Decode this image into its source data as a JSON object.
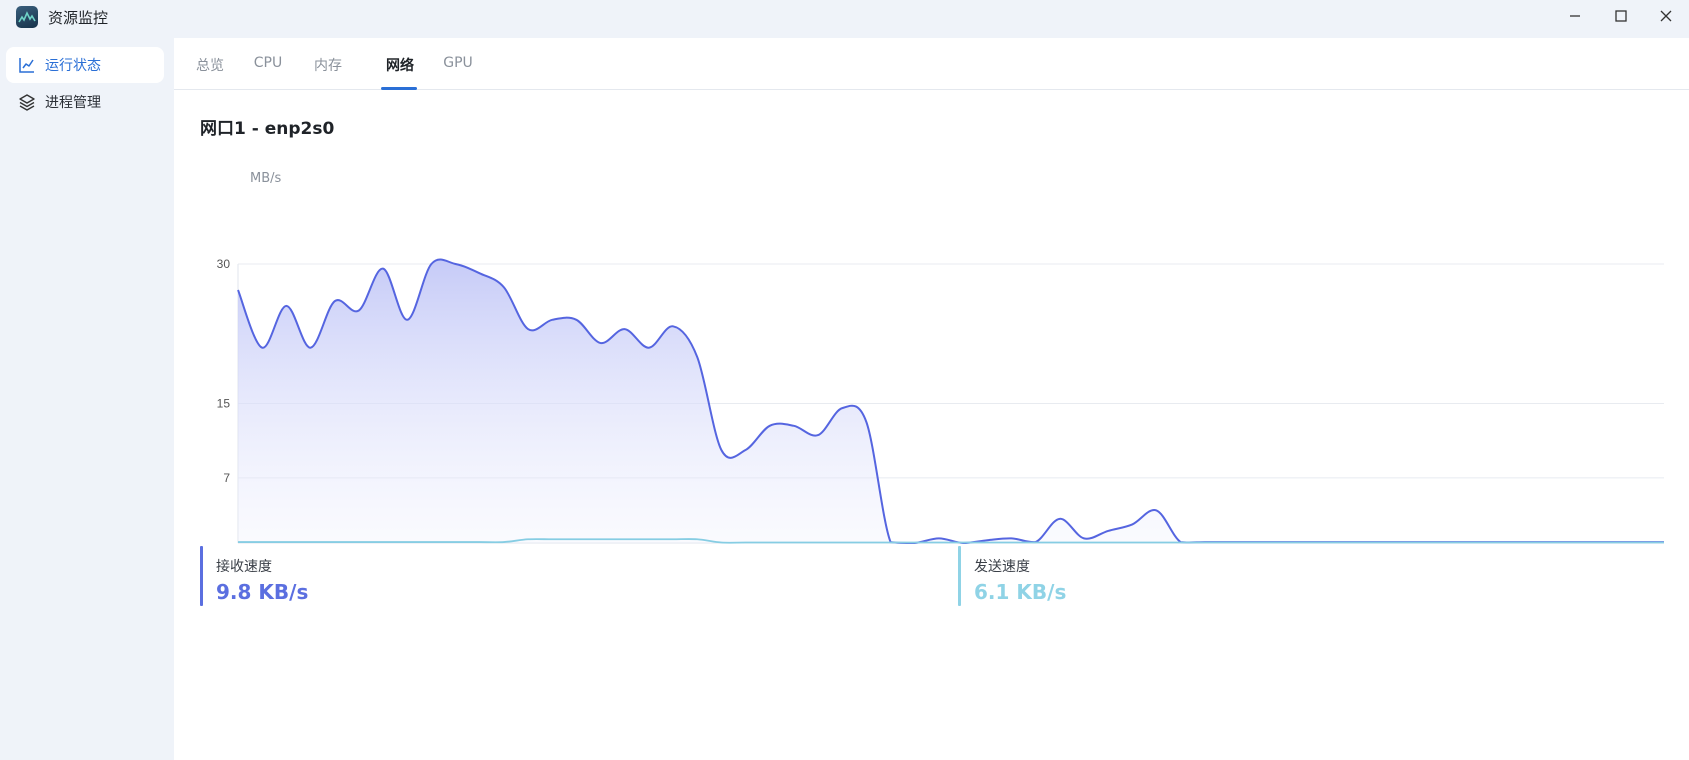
{
  "window": {
    "title": "资源监控",
    "logo_icon": "app-logo-icon",
    "controls": [
      "minimize-icon",
      "maximize-icon",
      "close-icon"
    ]
  },
  "sidebar": {
    "items": [
      {
        "label": "运行状态",
        "icon": "line-chart-icon",
        "active": true
      },
      {
        "label": "进程管理",
        "icon": "layers-icon",
        "active": false
      }
    ]
  },
  "tabs": [
    {
      "label": "总览",
      "active": false
    },
    {
      "label": "CPU",
      "active": false
    },
    {
      "label": "内存",
      "active": false
    },
    {
      "label": "网络",
      "active": true
    },
    {
      "label": "GPU",
      "active": false
    }
  ],
  "interface": {
    "title": "网口1 - enp2s0"
  },
  "stats": {
    "receive": {
      "label": "接收速度",
      "value": "9.8 KB/s",
      "color": "#5b6fe0"
    },
    "send": {
      "label": "发送速度",
      "value": "6.1 KB/s",
      "color": "#8fd3e6"
    }
  },
  "colors": {
    "accent": "#2a6fd6",
    "receive_line": "#5565e0",
    "send_line": "#86cde3"
  },
  "chart_data": {
    "type": "area",
    "unit": "MB/s",
    "y_ticks": [
      7,
      15,
      30
    ],
    "ylim": [
      0,
      30
    ],
    "grid": true,
    "series": [
      {
        "name": "接收速度",
        "values": [
          27.2,
          21,
          25.5,
          21,
          26,
          25,
          29.5,
          24,
          30,
          30,
          29,
          27.5,
          23,
          24,
          24,
          21.5,
          23,
          21,
          23.3,
          20,
          10,
          10,
          12.6,
          12.6,
          11.6,
          14.5,
          13,
          0.1,
          0,
          0.5,
          0,
          0.3,
          0.5,
          0.1,
          2.6,
          0.5,
          1.3,
          2,
          3.5,
          0.1,
          0.1,
          0.1,
          0.1,
          0.1,
          0.1,
          0.1,
          0.1,
          0.1,
          0.1,
          0.1,
          0.1,
          0.1,
          0.1,
          0.1,
          0.1,
          0.1,
          0.1,
          0.1,
          0.1,
          0.1
        ]
      },
      {
        "name": "发送速度",
        "values": [
          0.1,
          0.1,
          0.1,
          0.1,
          0.1,
          0.1,
          0.1,
          0.1,
          0.1,
          0.1,
          0.1,
          0.1,
          0.4,
          0.4,
          0.4,
          0.4,
          0.4,
          0.4,
          0.4,
          0.4,
          0.05,
          0.05,
          0.05,
          0.05,
          0.05,
          0.05,
          0.05,
          0.05,
          0.05,
          0.05,
          0.05,
          0.05,
          0.05,
          0.05,
          0.05,
          0.05,
          0.05,
          0.05,
          0.05,
          0.05,
          0.05,
          0.05,
          0.05,
          0.05,
          0.05,
          0.05,
          0.05,
          0.05,
          0.05,
          0.05,
          0.05,
          0.05,
          0.05,
          0.05,
          0.05,
          0.05,
          0.05,
          0.05,
          0.05,
          0.05
        ]
      }
    ]
  }
}
